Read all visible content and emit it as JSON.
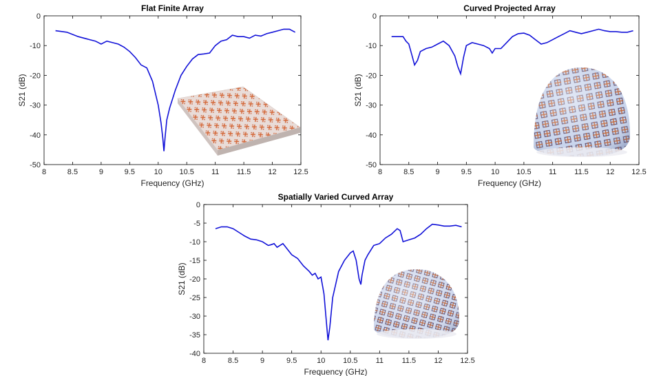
{
  "chart_data": [
    {
      "type": "line",
      "title": "Flat Finite Array",
      "xlabel": "Frequency (GHz)",
      "ylabel": "S21 (dB)",
      "xlim": [
        8,
        12.5
      ],
      "ylim": [
        -50,
        0
      ],
      "xticks": [
        8,
        8.5,
        9,
        9.5,
        10,
        10.5,
        11,
        11.5,
        12,
        12.5
      ],
      "yticks": [
        0,
        -10,
        -20,
        -30,
        -40,
        -50
      ],
      "grid": false,
      "inset": "flat-array",
      "series": [
        {
          "color": "#1010d8",
          "x": [
            8.2,
            8.4,
            8.6,
            8.8,
            8.9,
            9.0,
            9.1,
            9.2,
            9.3,
            9.4,
            9.5,
            9.6,
            9.7,
            9.8,
            9.9,
            10.0,
            10.05,
            10.08,
            10.1,
            10.12,
            10.15,
            10.2,
            10.3,
            10.4,
            10.5,
            10.6,
            10.7,
            10.8,
            10.9,
            11.0,
            11.1,
            11.2,
            11.3,
            11.4,
            11.5,
            11.6,
            11.7,
            11.8,
            11.9,
            12.0,
            12.1,
            12.2,
            12.3,
            12.4
          ],
          "y": [
            -5,
            -5.5,
            -7,
            -8,
            -8.5,
            -9.5,
            -8.5,
            -9,
            -9.5,
            -10.5,
            -12,
            -14,
            -16.5,
            -17.5,
            -22,
            -30,
            -36,
            -41,
            -45.5,
            -41,
            -35,
            -31,
            -25,
            -20,
            -17,
            -14.5,
            -13,
            -12.8,
            -12.5,
            -10,
            -8.5,
            -8,
            -6.5,
            -7,
            -7,
            -7.5,
            -6.5,
            -6.8,
            -6,
            -5.5,
            -5,
            -4.5,
            -4.5,
            -5.5
          ]
        }
      ]
    },
    {
      "type": "line",
      "title": "Curved Projected Array",
      "xlabel": "Frequency (GHz)",
      "ylabel": "S21 (dB)",
      "xlim": [
        8,
        12.5
      ],
      "ylim": [
        -50,
        0
      ],
      "xticks": [
        8,
        8.5,
        9,
        9.5,
        10,
        10.5,
        11,
        11.5,
        12,
        12.5
      ],
      "yticks": [
        0,
        -10,
        -20,
        -30,
        -40,
        -50
      ],
      "grid": false,
      "inset": "curved-dome",
      "series": [
        {
          "color": "#1010d8",
          "x": [
            8.2,
            8.3,
            8.4,
            8.45,
            8.5,
            8.55,
            8.6,
            8.65,
            8.7,
            8.8,
            8.9,
            9.0,
            9.1,
            9.2,
            9.3,
            9.35,
            9.4,
            9.45,
            9.5,
            9.6,
            9.7,
            9.8,
            9.9,
            9.95,
            10.0,
            10.1,
            10.2,
            10.3,
            10.4,
            10.5,
            10.6,
            10.7,
            10.8,
            10.9,
            11.0,
            11.1,
            11.2,
            11.3,
            11.4,
            11.5,
            11.6,
            11.7,
            11.8,
            11.9,
            12.0,
            12.1,
            12.2,
            12.3,
            12.4
          ],
          "y": [
            -7,
            -7,
            -7,
            -8.5,
            -9.5,
            -13,
            -16.5,
            -15,
            -12,
            -11,
            -10.5,
            -9.5,
            -8.5,
            -10,
            -13.5,
            -17,
            -19.5,
            -14,
            -10,
            -9,
            -9.5,
            -10,
            -11,
            -12.5,
            -11,
            -11,
            -9,
            -7,
            -6,
            -5.8,
            -6.5,
            -8,
            -9.5,
            -9,
            -8,
            -7,
            -6,
            -5,
            -5.5,
            -6,
            -5.5,
            -5,
            -4.5,
            -5,
            -5.3,
            -5.3,
            -5.5,
            -5.5,
            -5
          ]
        }
      ]
    },
    {
      "type": "line",
      "title": "Spatially Varied Curved Array",
      "xlabel": "Frequency (GHz)",
      "ylabel": "S21 (dB)",
      "xlim": [
        8,
        12.5
      ],
      "ylim": [
        -40,
        0
      ],
      "xticks": [
        8,
        8.5,
        9,
        9.5,
        10,
        10.5,
        11,
        11.5,
        12,
        12.5
      ],
      "yticks": [
        0,
        -5,
        -10,
        -15,
        -20,
        -25,
        -30,
        -35,
        -40
      ],
      "grid": false,
      "inset": "varied-dome",
      "series": [
        {
          "color": "#1010d8",
          "x": [
            8.2,
            8.3,
            8.4,
            8.5,
            8.6,
            8.7,
            8.8,
            8.9,
            9.0,
            9.1,
            9.15,
            9.2,
            9.25,
            9.3,
            9.35,
            9.4,
            9.5,
            9.6,
            9.7,
            9.8,
            9.85,
            9.9,
            9.95,
            10.0,
            10.05,
            10.1,
            10.12,
            10.15,
            10.2,
            10.3,
            10.4,
            10.5,
            10.55,
            10.6,
            10.65,
            10.68,
            10.7,
            10.75,
            10.8,
            10.9,
            11.0,
            11.1,
            11.2,
            11.3,
            11.35,
            11.4,
            11.5,
            11.6,
            11.7,
            11.8,
            11.9,
            12.0,
            12.1,
            12.2,
            12.3,
            12.4
          ],
          "y": [
            -6.5,
            -6,
            -6,
            -6.5,
            -7.5,
            -8.5,
            -9.3,
            -9.5,
            -10,
            -11,
            -10.8,
            -10.5,
            -11.5,
            -11,
            -10.5,
            -11.5,
            -13.5,
            -14.5,
            -16.5,
            -18,
            -19,
            -18.5,
            -20,
            -19.5,
            -24,
            -33,
            -36.5,
            -33,
            -25,
            -18,
            -15,
            -13,
            -12.5,
            -15,
            -20,
            -21.5,
            -19,
            -15,
            -13.5,
            -11,
            -10.5,
            -9,
            -8,
            -6.5,
            -7,
            -10,
            -9.5,
            -9,
            -8,
            -6.5,
            -5.3,
            -5.5,
            -5.8,
            -5.8,
            -5.6,
            -6
          ]
        }
      ]
    }
  ]
}
